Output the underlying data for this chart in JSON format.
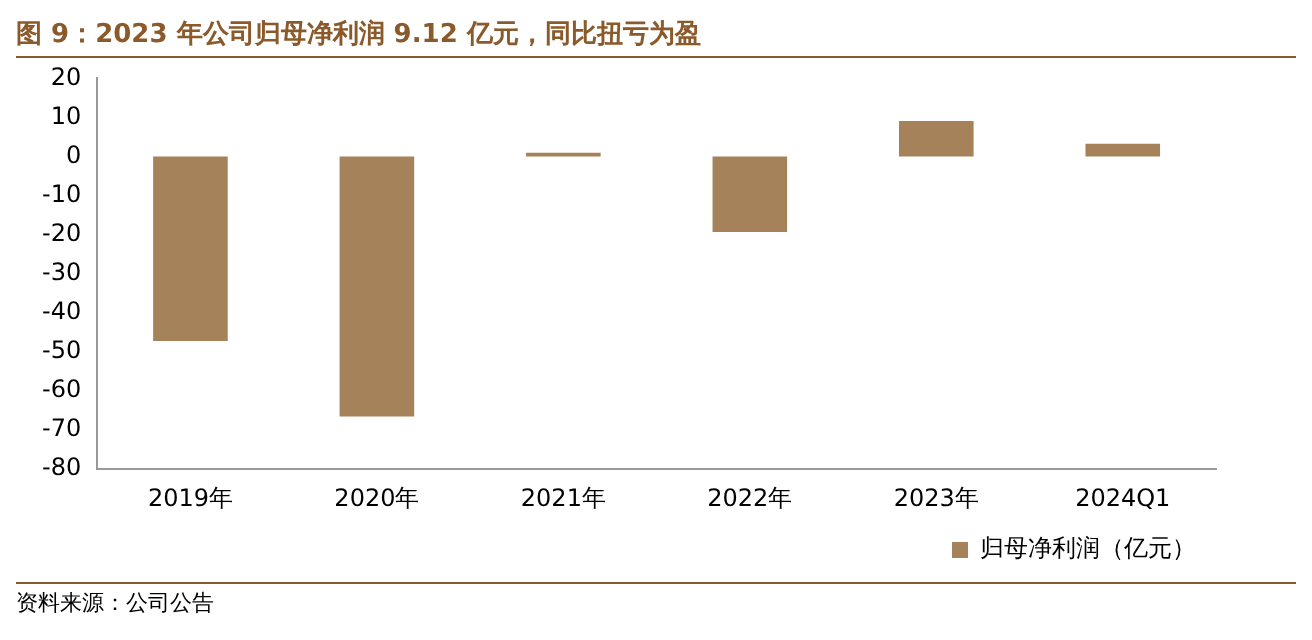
{
  "chart_data": {
    "type": "bar",
    "title": "图 9：2023 年公司归母净利润 9.12 亿元，同比扭亏为盈",
    "categories": [
      "2019年",
      "2020年",
      "2021年",
      "2022年",
      "2023年",
      "2024Q1"
    ],
    "series": [
      {
        "name": "归母净利润（亿元）",
        "color": "#a5825a",
        "values": [
          -47.2,
          -66.5,
          1.0,
          -19.3,
          9.12,
          3.3
        ]
      }
    ],
    "ylim": [
      -80,
      20
    ],
    "yticks": [
      -80,
      -70,
      -60,
      -50,
      -40,
      -30,
      -20,
      -10,
      0,
      10,
      20
    ],
    "grid": false,
    "legend": "bottom",
    "annotations": [
      "资料来源：公司公告"
    ]
  }
}
